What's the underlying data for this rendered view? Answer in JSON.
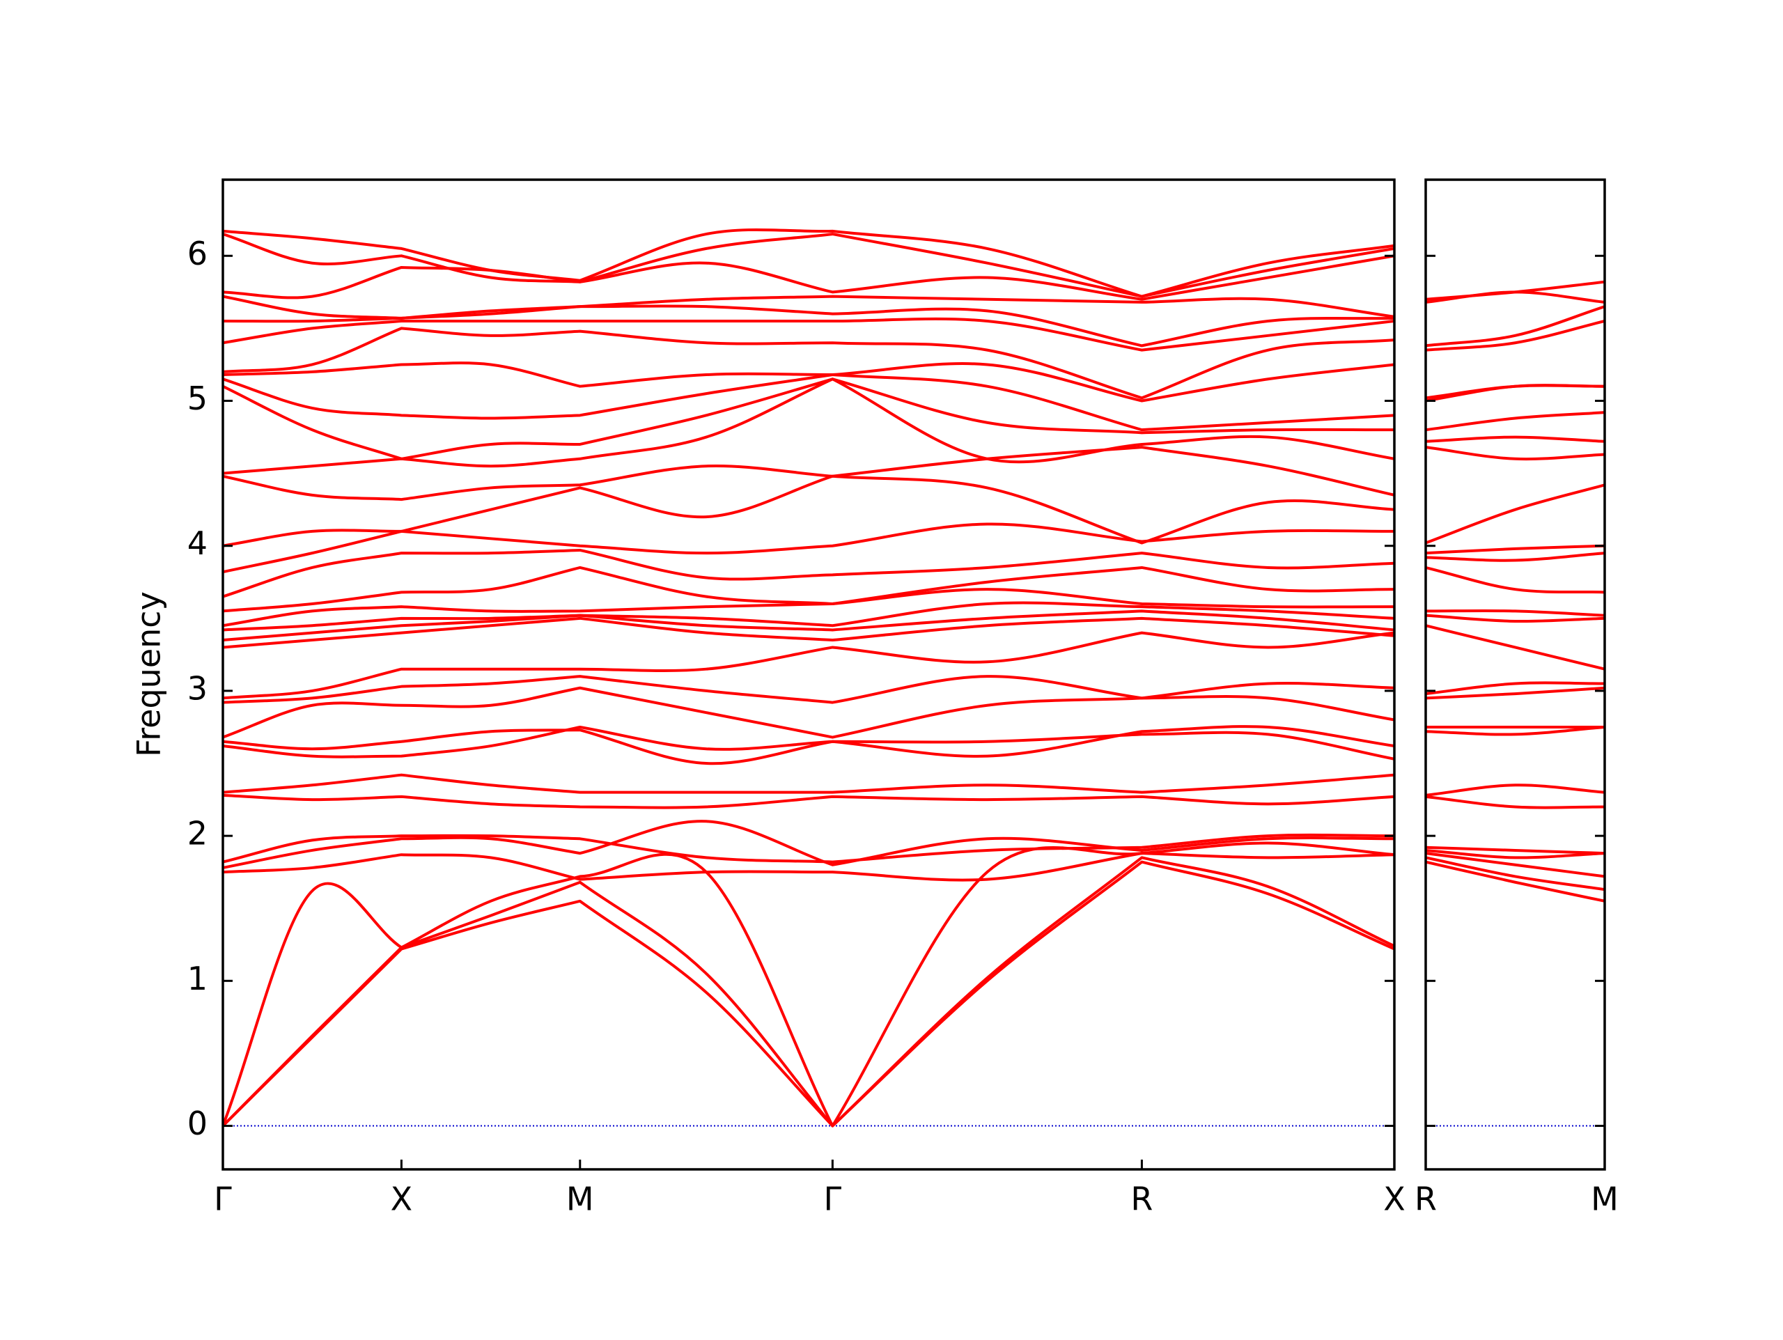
{
  "chart_data": [
    {
      "type": "line",
      "ylabel": "Frequency",
      "color": "#ff0000",
      "x": [
        0,
        0.25,
        0.5,
        0.75,
        1.0,
        1.3536,
        1.7071,
        2.1401,
        2.5731,
        2.9267,
        3.2802
      ],
      "xlim": [
        0,
        3.2802
      ],
      "xticks": [
        {
          "value": 0,
          "label": "Γ"
        },
        {
          "value": 0.5,
          "label": "X"
        },
        {
          "value": 1.0,
          "label": "M"
        },
        {
          "value": 1.7071,
          "label": "Γ"
        },
        {
          "value": 2.5731,
          "label": "R"
        },
        {
          "value": 3.2802,
          "label": "X"
        }
      ],
      "ylim": [
        -0.3,
        6.525
      ],
      "yticks": [
        0,
        1,
        2,
        3,
        4,
        5,
        6
      ],
      "show_ytick_labels": true,
      "zero_line": 0,
      "zero_line_color": "#0000cc",
      "series": [
        {
          "values": [
            0,
            0.61,
            1.22,
            1.4,
            1.55,
            0.92,
            0,
            1.0,
            1.82,
            1.6,
            1.22
          ]
        },
        {
          "values": [
            0,
            0.62,
            1.23,
            1.45,
            1.68,
            1.05,
            0,
            1.02,
            1.85,
            1.65,
            1.24
          ]
        },
        {
          "values": [
            0,
            1.62,
            1.23,
            1.55,
            1.72,
            1.75,
            0,
            1.75,
            1.88,
            1.85,
            1.87
          ]
        },
        {
          "values": [
            1.75,
            1.78,
            1.87,
            1.85,
            1.7,
            1.75,
            1.75,
            1.7,
            1.88,
            1.95,
            1.87
          ]
        },
        {
          "values": [
            1.78,
            1.9,
            1.98,
            1.98,
            1.88,
            2.1,
            1.8,
            1.98,
            1.9,
            1.98,
            1.98
          ]
        },
        {
          "values": [
            1.82,
            1.97,
            2.0,
            2.0,
            1.98,
            1.85,
            1.82,
            1.9,
            1.92,
            2.0,
            2.0
          ]
        },
        {
          "values": [
            2.28,
            2.25,
            2.27,
            2.22,
            2.2,
            2.2,
            2.27,
            2.25,
            2.27,
            2.22,
            2.27
          ]
        },
        {
          "values": [
            2.3,
            2.35,
            2.42,
            2.35,
            2.3,
            2.3,
            2.3,
            2.35,
            2.3,
            2.35,
            2.42
          ]
        },
        {
          "values": [
            2.62,
            2.55,
            2.55,
            2.62,
            2.75,
            2.6,
            2.65,
            2.65,
            2.7,
            2.7,
            2.53
          ]
        },
        {
          "values": [
            2.65,
            2.6,
            2.65,
            2.72,
            2.73,
            2.5,
            2.65,
            2.55,
            2.72,
            2.75,
            2.62
          ]
        },
        {
          "values": [
            2.68,
            2.9,
            2.9,
            2.9,
            3.02,
            2.85,
            2.68,
            2.9,
            2.95,
            2.95,
            2.8
          ]
        },
        {
          "values": [
            2.92,
            2.95,
            3.03,
            3.05,
            3.1,
            3.0,
            2.92,
            3.1,
            2.95,
            3.05,
            3.02
          ]
        },
        {
          "values": [
            2.95,
            3.0,
            3.15,
            3.15,
            3.15,
            3.15,
            3.3,
            3.2,
            3.4,
            3.3,
            3.4
          ]
        },
        {
          "values": [
            3.3,
            3.35,
            3.4,
            3.45,
            3.5,
            3.4,
            3.35,
            3.45,
            3.5,
            3.45,
            3.38
          ]
        },
        {
          "values": [
            3.35,
            3.4,
            3.45,
            3.48,
            3.52,
            3.45,
            3.42,
            3.5,
            3.55,
            3.5,
            3.42
          ]
        },
        {
          "values": [
            3.42,
            3.45,
            3.5,
            3.5,
            3.52,
            3.5,
            3.45,
            3.6,
            3.58,
            3.55,
            3.5
          ]
        },
        {
          "values": [
            3.45,
            3.55,
            3.58,
            3.55,
            3.55,
            3.58,
            3.6,
            3.7,
            3.6,
            3.58,
            3.58
          ]
        },
        {
          "values": [
            3.55,
            3.6,
            3.68,
            3.7,
            3.85,
            3.65,
            3.6,
            3.75,
            3.85,
            3.7,
            3.7
          ]
        },
        {
          "values": [
            3.65,
            3.85,
            3.95,
            3.95,
            3.97,
            3.78,
            3.8,
            3.85,
            3.95,
            3.85,
            3.88
          ]
        },
        {
          "values": [
            3.82,
            3.95,
            4.1,
            4.05,
            4.0,
            3.95,
            4.0,
            4.15,
            4.03,
            4.1,
            4.1
          ]
        },
        {
          "values": [
            4.0,
            4.1,
            4.1,
            4.25,
            4.4,
            4.2,
            4.48,
            4.4,
            4.02,
            4.3,
            4.25
          ]
        },
        {
          "values": [
            4.48,
            4.35,
            4.32,
            4.4,
            4.42,
            4.55,
            4.48,
            4.6,
            4.68,
            4.55,
            4.35
          ]
        },
        {
          "values": [
            4.5,
            4.55,
            4.6,
            4.55,
            4.6,
            4.75,
            5.15,
            4.6,
            4.7,
            4.75,
            4.6
          ]
        },
        {
          "values": [
            5.1,
            4.8,
            4.6,
            4.7,
            4.7,
            4.9,
            5.15,
            4.85,
            4.78,
            4.8,
            4.8
          ]
        },
        {
          "values": [
            5.15,
            4.95,
            4.9,
            4.88,
            4.9,
            5.05,
            5.18,
            5.1,
            4.8,
            4.85,
            4.9
          ]
        },
        {
          "values": [
            5.18,
            5.2,
            5.25,
            5.25,
            5.1,
            5.18,
            5.18,
            5.25,
            5.0,
            5.15,
            5.25
          ]
        },
        {
          "values": [
            5.2,
            5.25,
            5.5,
            5.45,
            5.48,
            5.4,
            5.4,
            5.35,
            5.02,
            5.35,
            5.42
          ]
        },
        {
          "values": [
            5.4,
            5.5,
            5.55,
            5.55,
            5.55,
            5.55,
            5.55,
            5.55,
            5.35,
            5.45,
            5.55
          ]
        },
        {
          "values": [
            5.55,
            5.55,
            5.57,
            5.6,
            5.65,
            5.65,
            5.6,
            5.62,
            5.38,
            5.55,
            5.57
          ]
        },
        {
          "values": [
            5.72,
            5.6,
            5.57,
            5.62,
            5.65,
            5.7,
            5.72,
            5.7,
            5.68,
            5.7,
            5.58
          ]
        },
        {
          "values": [
            5.75,
            5.72,
            5.92,
            5.9,
            5.82,
            5.95,
            5.75,
            5.85,
            5.7,
            5.85,
            6.0
          ]
        },
        {
          "values": [
            6.15,
            5.95,
            6.0,
            5.85,
            5.82,
            6.05,
            6.15,
            5.95,
            5.72,
            5.9,
            6.05
          ]
        },
        {
          "values": [
            6.17,
            6.12,
            6.05,
            5.9,
            5.83,
            6.15,
            6.17,
            6.05,
            5.72,
            5.95,
            6.07
          ]
        }
      ]
    },
    {
      "type": "line",
      "color": "#ff0000",
      "x": [
        0,
        0.3536,
        0.7071
      ],
      "xlim": [
        0,
        0.7071
      ],
      "xticks": [
        {
          "value": 0,
          "label": "R"
        },
        {
          "value": 0.7071,
          "label": "M"
        }
      ],
      "ylim": [
        -0.3,
        6.525
      ],
      "yticks": [
        0,
        1,
        2,
        3,
        4,
        5,
        6
      ],
      "show_ytick_labels": false,
      "zero_line": 0,
      "zero_line_color": "#0000cc",
      "series": [
        {
          "values": [
            1.82,
            1.68,
            1.55
          ]
        },
        {
          "values": [
            1.85,
            1.72,
            1.63
          ]
        },
        {
          "values": [
            1.88,
            1.8,
            1.72
          ]
        },
        {
          "values": [
            1.9,
            1.85,
            1.88
          ]
        },
        {
          "values": [
            1.92,
            1.9,
            1.88
          ]
        },
        {
          "values": [
            2.27,
            2.2,
            2.2
          ]
        },
        {
          "values": [
            2.28,
            2.35,
            2.3
          ]
        },
        {
          "values": [
            2.72,
            2.7,
            2.75
          ]
        },
        {
          "values": [
            2.75,
            2.75,
            2.75
          ]
        },
        {
          "values": [
            2.95,
            2.98,
            3.02
          ]
        },
        {
          "values": [
            2.98,
            3.05,
            3.05
          ]
        },
        {
          "values": [
            3.45,
            3.3,
            3.15
          ]
        },
        {
          "values": [
            3.52,
            3.48,
            3.5
          ]
        },
        {
          "values": [
            3.55,
            3.55,
            3.52
          ]
        },
        {
          "values": [
            3.85,
            3.7,
            3.68
          ]
        },
        {
          "values": [
            3.92,
            3.9,
            3.95
          ]
        },
        {
          "values": [
            3.95,
            3.98,
            4.0
          ]
        },
        {
          "values": [
            4.02,
            4.25,
            4.42
          ]
        },
        {
          "values": [
            4.68,
            4.6,
            4.63
          ]
        },
        {
          "values": [
            4.72,
            4.75,
            4.72
          ]
        },
        {
          "values": [
            4.8,
            4.88,
            4.92
          ]
        },
        {
          "values": [
            5.0,
            5.1,
            5.1
          ]
        },
        {
          "values": [
            5.02,
            5.1,
            5.1
          ]
        },
        {
          "values": [
            5.35,
            5.4,
            5.55
          ]
        },
        {
          "values": [
            5.38,
            5.45,
            5.65
          ]
        },
        {
          "values": [
            5.68,
            5.75,
            5.68
          ]
        },
        {
          "values": [
            5.7,
            5.75,
            5.82
          ]
        }
      ]
    }
  ]
}
